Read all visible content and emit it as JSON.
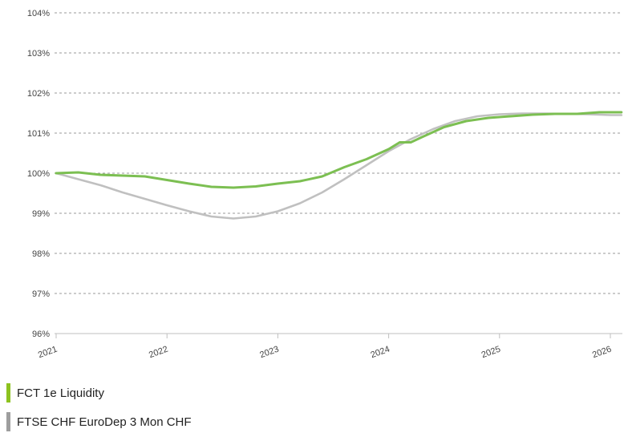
{
  "chart_data": {
    "type": "line",
    "title": "",
    "xlabel": "",
    "ylabel": "",
    "ylim": [
      96,
      104
    ],
    "xlim": [
      2021,
      2026.1
    ],
    "y_ticks": [
      "96%",
      "97%",
      "98%",
      "99%",
      "100%",
      "101%",
      "102%",
      "103%",
      "104%"
    ],
    "x_ticks": [
      "2021",
      "2022",
      "2023",
      "2024",
      "2025",
      "2026"
    ],
    "grid": true,
    "legend_placement": "bottom-left",
    "series": [
      {
        "name": "FCT 1e Liquidity",
        "color": "#7cbf52",
        "points": [
          [
            2021.0,
            100.0
          ],
          [
            2021.2,
            100.02
          ],
          [
            2021.4,
            99.96
          ],
          [
            2021.6,
            99.94
          ],
          [
            2021.8,
            99.92
          ],
          [
            2022.0,
            99.83
          ],
          [
            2022.2,
            99.74
          ],
          [
            2022.4,
            99.66
          ],
          [
            2022.6,
            99.64
          ],
          [
            2022.8,
            99.67
          ],
          [
            2023.0,
            99.74
          ],
          [
            2023.2,
            99.8
          ],
          [
            2023.4,
            99.92
          ],
          [
            2023.6,
            100.15
          ],
          [
            2023.8,
            100.35
          ],
          [
            2024.0,
            100.6
          ],
          [
            2024.1,
            100.77
          ],
          [
            2024.2,
            100.77
          ],
          [
            2024.3,
            100.9
          ],
          [
            2024.5,
            101.15
          ],
          [
            2024.7,
            101.3
          ],
          [
            2024.9,
            101.38
          ],
          [
            2025.1,
            101.42
          ],
          [
            2025.3,
            101.46
          ],
          [
            2025.5,
            101.48
          ],
          [
            2025.7,
            101.48
          ],
          [
            2025.9,
            101.52
          ],
          [
            2026.1,
            101.52
          ]
        ]
      },
      {
        "name": "FTSE CHF EuroDep 3 Mon CHF",
        "color": "#c0c0c0",
        "points": [
          [
            2021.0,
            100.0
          ],
          [
            2021.2,
            99.85
          ],
          [
            2021.4,
            99.7
          ],
          [
            2021.6,
            99.52
          ],
          [
            2021.8,
            99.36
          ],
          [
            2022.0,
            99.2
          ],
          [
            2022.2,
            99.05
          ],
          [
            2022.4,
            98.92
          ],
          [
            2022.6,
            98.87
          ],
          [
            2022.8,
            98.92
          ],
          [
            2023.0,
            99.05
          ],
          [
            2023.2,
            99.25
          ],
          [
            2023.4,
            99.52
          ],
          [
            2023.6,
            99.85
          ],
          [
            2023.8,
            100.2
          ],
          [
            2024.0,
            100.55
          ],
          [
            2024.2,
            100.85
          ],
          [
            2024.4,
            101.1
          ],
          [
            2024.6,
            101.3
          ],
          [
            2024.8,
            101.42
          ],
          [
            2025.0,
            101.47
          ],
          [
            2025.2,
            101.49
          ],
          [
            2025.4,
            101.49
          ],
          [
            2025.6,
            101.48
          ],
          [
            2025.8,
            101.47
          ],
          [
            2026.0,
            101.45
          ],
          [
            2026.1,
            101.45
          ]
        ]
      }
    ]
  },
  "legend": [
    {
      "label": "FCT 1e Liquidity",
      "color": "#8dc21f"
    },
    {
      "label": "FTSE CHF EuroDep 3 Mon CHF",
      "color": "#9e9e9e"
    }
  ]
}
